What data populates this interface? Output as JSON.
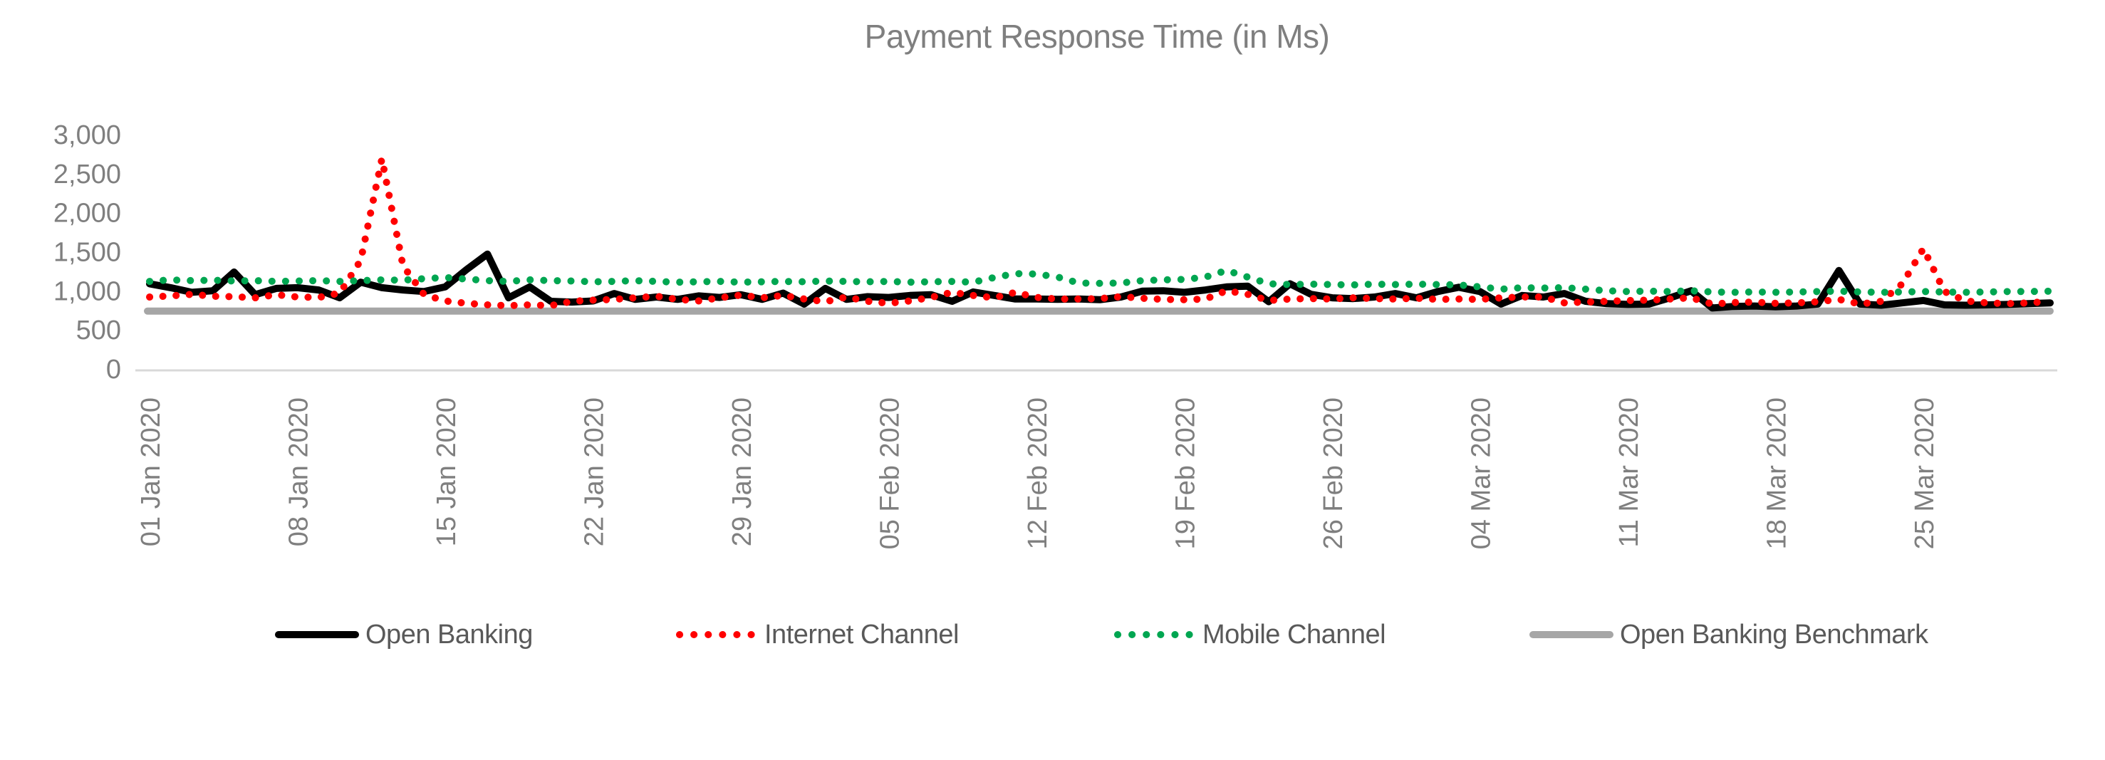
{
  "page": {
    "background": "#FFFFFF"
  },
  "colors": {
    "title_text": "#7F7F7F",
    "tick_text": "#7F7F7F",
    "legend_text": "#595959",
    "axis_line": "#D9D9D9",
    "open_banking": "#000000",
    "internet_channel": "#FF0000",
    "mobile_channel": "#00A651",
    "benchmark": "#A6A6A6"
  },
  "legend": [
    {
      "label": "Open Banking",
      "color": "#000000",
      "dotted": false
    },
    {
      "label": "Internet Channel",
      "color": "#FF0000",
      "dotted": true
    },
    {
      "label": "Mobile Channel",
      "color": "#00A651",
      "dotted": true
    },
    {
      "label": "Open Banking Benchmark",
      "color": "#A6A6A6",
      "dotted": false
    }
  ],
  "chart_data": {
    "type": "line",
    "title": "Payment Response Time (in Ms)",
    "xlabel": "",
    "ylabel": "",
    "ylim": [
      0,
      3000
    ],
    "grid": false,
    "legend_position": "bottom",
    "n_points": 91,
    "x_start": "01 Jan 2020",
    "x_end": "31 Mar 2020",
    "x_tick_day_index": [
      0,
      7,
      14,
      21,
      28,
      35,
      42,
      49,
      56,
      63,
      70,
      77,
      84
    ],
    "x_tick_labels": [
      "01 Jan 2020",
      "08 Jan 2020",
      "15 Jan 2020",
      "22 Jan 2020",
      "29 Jan 2020",
      "05 Feb 2020",
      "12 Feb 2020",
      "19 Feb 2020",
      "26 Feb 2020",
      "04 Mar 2020",
      "11 Mar 2020",
      "18 Mar 2020",
      "25 Mar 2020"
    ],
    "y_tick_values": [
      0,
      500,
      1000,
      1500,
      2000,
      2500,
      3000
    ],
    "y_tick_labels": [
      "0",
      "500",
      "1,000",
      "1,500",
      "2,000",
      "2,500",
      "3,000"
    ],
    "series": [
      {
        "name": "Open Banking",
        "color": "#000000",
        "style": "solid",
        "values": [
          1100,
          1050,
          990,
          1010,
          1250,
          960,
          1040,
          1050,
          1020,
          920,
          1120,
          1050,
          1020,
          1000,
          1060,
          1280,
          1480,
          920,
          1060,
          875,
          865,
          880,
          975,
          900,
          930,
          900,
          945,
          925,
          960,
          900,
          980,
          840,
          1040,
          900,
          935,
          925,
          950,
          960,
          875,
          995,
          950,
          905,
          905,
          900,
          905,
          895,
          930,
          1005,
          1010,
          990,
          1020,
          1060,
          1070,
          870,
          1100,
          965,
          920,
          910,
          930,
          975,
          920,
          1000,
          1055,
          1000,
          840,
          950,
          930,
          975,
          875,
          845,
          835,
          840,
          920,
          1010,
          790,
          810,
          815,
          805,
          815,
          840,
          1270,
          840,
          825,
          855,
          885,
          830,
          825,
          830,
          835,
          845,
          855
        ]
      },
      {
        "name": "Internet Channel",
        "color": "#FF0000",
        "style": "dotted",
        "values": [
          930,
          945,
          965,
          940,
          935,
          920,
          960,
          930,
          925,
          980,
          1400,
          2700,
          1330,
          960,
          880,
          850,
          830,
          820,
          830,
          820,
          875,
          890,
          900,
          920,
          940,
          900,
          880,
          920,
          955,
          920,
          950,
          905,
          870,
          930,
          875,
          850,
          880,
          925,
          990,
          950,
          920,
          990,
          925,
          905,
          905,
          910,
          935,
          915,
          900,
          895,
          905,
          1010,
          965,
          885,
          905,
          910,
          905,
          920,
          910,
          905,
          915,
          900,
          905,
          900,
          920,
          930,
          930,
          855,
          865,
          875,
          885,
          890,
          905,
          920,
          840,
          860,
          865,
          850,
          855,
          870,
          900,
          840,
          875,
          1100,
          1550,
          1000,
          880,
          855,
          845,
          855,
          875
        ]
      },
      {
        "name": "Mobile Channel",
        "color": "#00A651",
        "style": "dotted",
        "values": [
          1130,
          1150,
          1140,
          1145,
          1135,
          1140,
          1130,
          1135,
          1140,
          1130,
          1140,
          1150,
          1145,
          1165,
          1180,
          1160,
          1140,
          1130,
          1150,
          1140,
          1135,
          1125,
          1130,
          1140,
          1130,
          1120,
          1125,
          1130,
          1120,
          1125,
          1130,
          1125,
          1135,
          1130,
          1125,
          1130,
          1120,
          1125,
          1130,
          1120,
          1180,
          1230,
          1225,
          1185,
          1110,
          1105,
          1110,
          1140,
          1150,
          1155,
          1185,
          1270,
          1185,
          1100,
          1090,
          1095,
          1090,
          1085,
          1095,
          1090,
          1095,
          1090,
          1085,
          1060,
          1030,
          1050,
          1045,
          1050,
          1030,
          1010,
          1000,
          1005,
          1000,
          1010,
          995,
          990,
          995,
          990,
          995,
          1000,
          1005,
          995,
          990,
          995,
          1000,
          995,
          990,
          995,
          1000,
          1000,
          1005
        ]
      },
      {
        "name": "Open Banking Benchmark",
        "color": "#A6A6A6",
        "style": "solid",
        "constant": 750
      }
    ]
  }
}
